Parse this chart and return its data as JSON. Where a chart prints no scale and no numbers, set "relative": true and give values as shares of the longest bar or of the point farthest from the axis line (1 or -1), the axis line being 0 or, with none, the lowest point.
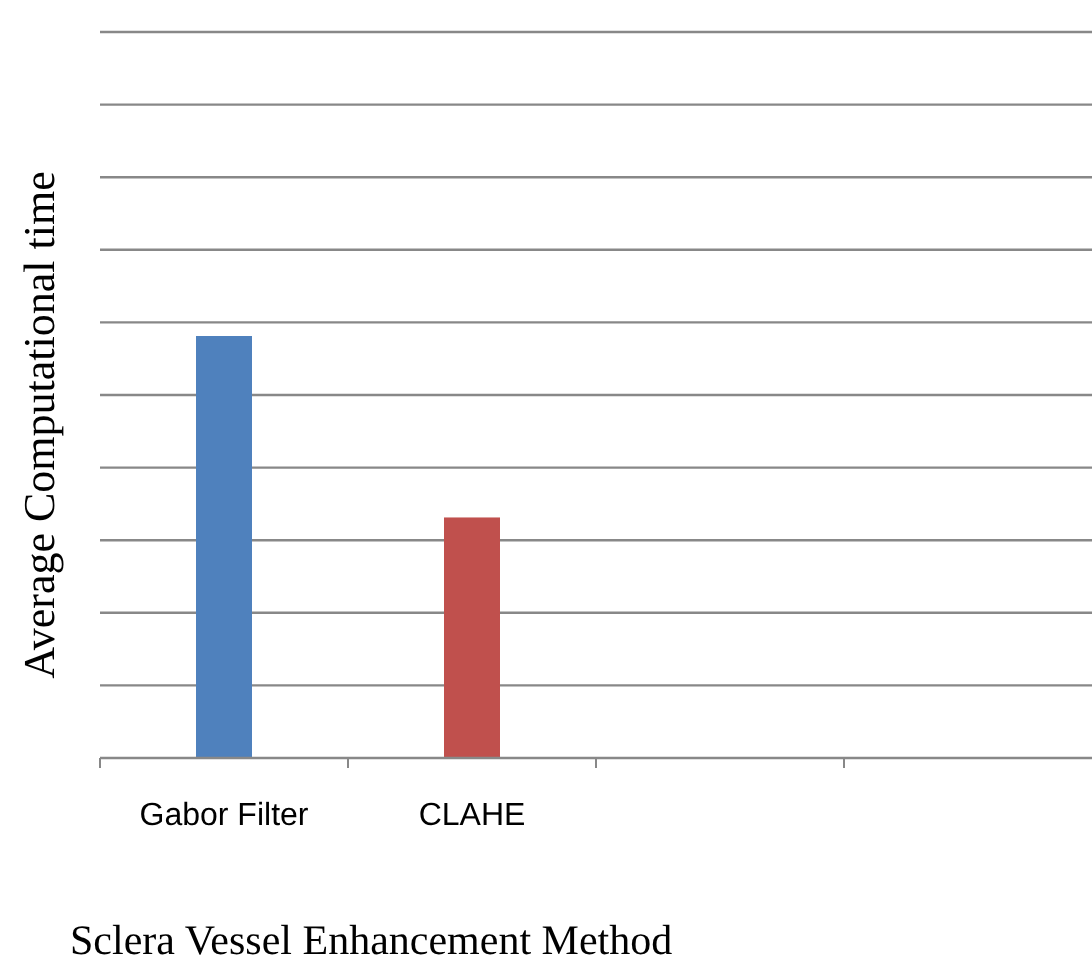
{
  "chart_data": {
    "type": "bar",
    "relative": true,
    "xlabel": "Sclera Vessel Enhancement Method",
    "ylabel": "Average Computational time",
    "categories": [
      "Gabor Filter",
      "CLAHE",
      null,
      null
    ],
    "values": [
      1,
      0.57,
      null,
      null
    ],
    "colors": [
      "#4f81bd",
      "#c0504d",
      null,
      null
    ],
    "grid": "y"
  }
}
